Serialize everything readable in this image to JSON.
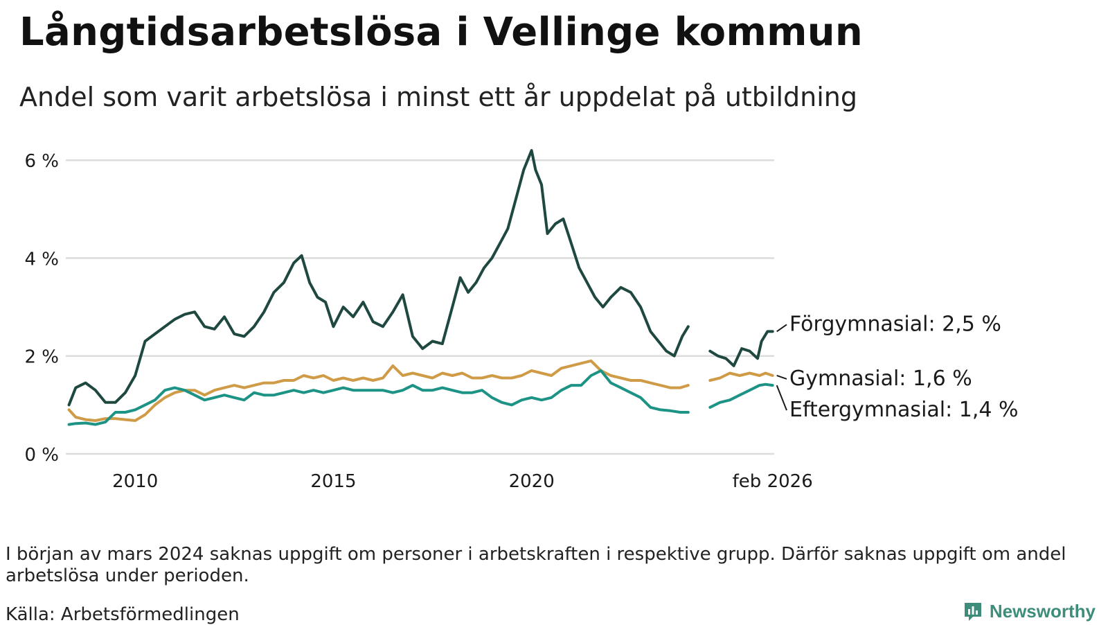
{
  "title": "Långtidsarbetslösa i Vellinge kommun",
  "subtitle": "Andel som varit arbetslösa i minst ett år uppdelat på utbildning",
  "note": "I början av mars 2024 saknas uppgift om personer i arbetskraften i respektive grupp. Därför saknas uppgift om andel arbetslösa under perioden.",
  "source": "Källa: Arbetsförmedlingen",
  "brand": "Newsworthy",
  "chart_data": {
    "type": "line",
    "x_unit": "year",
    "xlim": [
      2008.25,
      2026.12
    ],
    "ylim": [
      0,
      6.3
    ],
    "y_ticks": [
      0,
      2,
      4,
      6
    ],
    "y_tick_labels": [
      "0 %",
      "2 %",
      "4 %",
      "6 %"
    ],
    "x_ticks": [
      2010,
      2015,
      2020,
      2026.08
    ],
    "x_tick_labels": [
      "2010",
      "2015",
      "2020",
      "feb 2026"
    ],
    "gap": [
      2024.15,
      2024.45
    ],
    "grid": true,
    "series": [
      {
        "name": "Förgymnasial",
        "label": "Förgymnasial: 2,5 %",
        "color": "#1e4840",
        "points": [
          [
            2008.33,
            1.0
          ],
          [
            2008.5,
            1.35
          ],
          [
            2008.75,
            1.45
          ],
          [
            2009.0,
            1.3
          ],
          [
            2009.25,
            1.05
          ],
          [
            2009.5,
            1.05
          ],
          [
            2009.75,
            1.25
          ],
          [
            2010.0,
            1.6
          ],
          [
            2010.25,
            2.3
          ],
          [
            2010.5,
            2.45
          ],
          [
            2010.75,
            2.6
          ],
          [
            2011.0,
            2.75
          ],
          [
            2011.25,
            2.85
          ],
          [
            2011.5,
            2.9
          ],
          [
            2011.75,
            2.6
          ],
          [
            2012.0,
            2.55
          ],
          [
            2012.25,
            2.8
          ],
          [
            2012.5,
            2.45
          ],
          [
            2012.75,
            2.4
          ],
          [
            2013.0,
            2.6
          ],
          [
            2013.25,
            2.9
          ],
          [
            2013.5,
            3.3
          ],
          [
            2013.75,
            3.5
          ],
          [
            2014.0,
            3.9
          ],
          [
            2014.2,
            4.05
          ],
          [
            2014.4,
            3.5
          ],
          [
            2014.6,
            3.2
          ],
          [
            2014.8,
            3.1
          ],
          [
            2015.0,
            2.6
          ],
          [
            2015.25,
            3.0
          ],
          [
            2015.5,
            2.8
          ],
          [
            2015.75,
            3.1
          ],
          [
            2016.0,
            2.7
          ],
          [
            2016.25,
            2.6
          ],
          [
            2016.5,
            2.9
          ],
          [
            2016.75,
            3.25
          ],
          [
            2017.0,
            2.4
          ],
          [
            2017.25,
            2.15
          ],
          [
            2017.5,
            2.3
          ],
          [
            2017.75,
            2.25
          ],
          [
            2018.0,
            3.0
          ],
          [
            2018.2,
            3.6
          ],
          [
            2018.4,
            3.3
          ],
          [
            2018.6,
            3.5
          ],
          [
            2018.8,
            3.8
          ],
          [
            2019.0,
            4.0
          ],
          [
            2019.2,
            4.3
          ],
          [
            2019.4,
            4.6
          ],
          [
            2019.6,
            5.2
          ],
          [
            2019.8,
            5.8
          ],
          [
            2020.0,
            6.2
          ],
          [
            2020.1,
            5.8
          ],
          [
            2020.25,
            5.5
          ],
          [
            2020.4,
            4.5
          ],
          [
            2020.6,
            4.7
          ],
          [
            2020.8,
            4.8
          ],
          [
            2021.0,
            4.3
          ],
          [
            2021.2,
            3.8
          ],
          [
            2021.4,
            3.5
          ],
          [
            2021.6,
            3.2
          ],
          [
            2021.8,
            3.0
          ],
          [
            2022.0,
            3.2
          ],
          [
            2022.25,
            3.4
          ],
          [
            2022.5,
            3.3
          ],
          [
            2022.75,
            3.0
          ],
          [
            2023.0,
            2.5
          ],
          [
            2023.2,
            2.3
          ],
          [
            2023.4,
            2.1
          ],
          [
            2023.6,
            2.0
          ],
          [
            2023.8,
            2.4
          ],
          [
            2023.95,
            2.6
          ],
          [
            2024.5,
            2.1
          ],
          [
            2024.7,
            2.0
          ],
          [
            2024.9,
            1.95
          ],
          [
            2025.1,
            1.8
          ],
          [
            2025.3,
            2.15
          ],
          [
            2025.5,
            2.1
          ],
          [
            2025.7,
            1.95
          ],
          [
            2025.8,
            2.3
          ],
          [
            2025.95,
            2.5
          ],
          [
            2026.08,
            2.5
          ]
        ]
      },
      {
        "name": "Gymnasial",
        "label": "Gymnasial: 1,6 %",
        "color": "#cf9b47",
        "points": [
          [
            2008.33,
            0.9
          ],
          [
            2008.5,
            0.75
          ],
          [
            2008.75,
            0.7
          ],
          [
            2009.0,
            0.68
          ],
          [
            2009.25,
            0.72
          ],
          [
            2009.5,
            0.72
          ],
          [
            2009.75,
            0.7
          ],
          [
            2010.0,
            0.68
          ],
          [
            2010.25,
            0.8
          ],
          [
            2010.5,
            1.0
          ],
          [
            2010.75,
            1.15
          ],
          [
            2011.0,
            1.25
          ],
          [
            2011.25,
            1.3
          ],
          [
            2011.5,
            1.3
          ],
          [
            2011.75,
            1.2
          ],
          [
            2012.0,
            1.3
          ],
          [
            2012.25,
            1.35
          ],
          [
            2012.5,
            1.4
          ],
          [
            2012.75,
            1.35
          ],
          [
            2013.0,
            1.4
          ],
          [
            2013.25,
            1.45
          ],
          [
            2013.5,
            1.45
          ],
          [
            2013.75,
            1.5
          ],
          [
            2014.0,
            1.5
          ],
          [
            2014.25,
            1.6
          ],
          [
            2014.5,
            1.55
          ],
          [
            2014.75,
            1.6
          ],
          [
            2015.0,
            1.5
          ],
          [
            2015.25,
            1.55
          ],
          [
            2015.5,
            1.5
          ],
          [
            2015.75,
            1.55
          ],
          [
            2016.0,
            1.5
          ],
          [
            2016.25,
            1.55
          ],
          [
            2016.5,
            1.8
          ],
          [
            2016.75,
            1.6
          ],
          [
            2017.0,
            1.65
          ],
          [
            2017.25,
            1.6
          ],
          [
            2017.5,
            1.55
          ],
          [
            2017.75,
            1.65
          ],
          [
            2018.0,
            1.6
          ],
          [
            2018.25,
            1.65
          ],
          [
            2018.5,
            1.55
          ],
          [
            2018.75,
            1.55
          ],
          [
            2019.0,
            1.6
          ],
          [
            2019.25,
            1.55
          ],
          [
            2019.5,
            1.55
          ],
          [
            2019.75,
            1.6
          ],
          [
            2020.0,
            1.7
          ],
          [
            2020.25,
            1.65
          ],
          [
            2020.5,
            1.6
          ],
          [
            2020.75,
            1.75
          ],
          [
            2021.0,
            1.8
          ],
          [
            2021.25,
            1.85
          ],
          [
            2021.5,
            1.9
          ],
          [
            2021.75,
            1.7
          ],
          [
            2022.0,
            1.6
          ],
          [
            2022.25,
            1.55
          ],
          [
            2022.5,
            1.5
          ],
          [
            2022.75,
            1.5
          ],
          [
            2023.0,
            1.45
          ],
          [
            2023.25,
            1.4
          ],
          [
            2023.5,
            1.35
          ],
          [
            2023.75,
            1.35
          ],
          [
            2023.95,
            1.4
          ],
          [
            2024.5,
            1.5
          ],
          [
            2024.75,
            1.55
          ],
          [
            2025.0,
            1.65
          ],
          [
            2025.25,
            1.6
          ],
          [
            2025.5,
            1.65
          ],
          [
            2025.75,
            1.6
          ],
          [
            2025.9,
            1.65
          ],
          [
            2026.08,
            1.6
          ]
        ]
      },
      {
        "name": "Eftergymnasial",
        "label": "Eftergymnasial: 1,4 %",
        "color": "#1d9385",
        "points": [
          [
            2008.33,
            0.6
          ],
          [
            2008.5,
            0.62
          ],
          [
            2008.75,
            0.63
          ],
          [
            2009.0,
            0.6
          ],
          [
            2009.25,
            0.65
          ],
          [
            2009.5,
            0.85
          ],
          [
            2009.75,
            0.85
          ],
          [
            2010.0,
            0.9
          ],
          [
            2010.25,
            1.0
          ],
          [
            2010.5,
            1.1
          ],
          [
            2010.75,
            1.3
          ],
          [
            2011.0,
            1.35
          ],
          [
            2011.25,
            1.3
          ],
          [
            2011.5,
            1.2
          ],
          [
            2011.75,
            1.1
          ],
          [
            2012.0,
            1.15
          ],
          [
            2012.25,
            1.2
          ],
          [
            2012.5,
            1.15
          ],
          [
            2012.75,
            1.1
          ],
          [
            2013.0,
            1.25
          ],
          [
            2013.25,
            1.2
          ],
          [
            2013.5,
            1.2
          ],
          [
            2013.75,
            1.25
          ],
          [
            2014.0,
            1.3
          ],
          [
            2014.25,
            1.25
          ],
          [
            2014.5,
            1.3
          ],
          [
            2014.75,
            1.25
          ],
          [
            2015.0,
            1.3
          ],
          [
            2015.25,
            1.35
          ],
          [
            2015.5,
            1.3
          ],
          [
            2015.75,
            1.3
          ],
          [
            2016.0,
            1.3
          ],
          [
            2016.25,
            1.3
          ],
          [
            2016.5,
            1.25
          ],
          [
            2016.75,
            1.3
          ],
          [
            2017.0,
            1.4
          ],
          [
            2017.25,
            1.3
          ],
          [
            2017.5,
            1.3
          ],
          [
            2017.75,
            1.35
          ],
          [
            2018.0,
            1.3
          ],
          [
            2018.25,
            1.25
          ],
          [
            2018.5,
            1.25
          ],
          [
            2018.75,
            1.3
          ],
          [
            2019.0,
            1.15
          ],
          [
            2019.25,
            1.05
          ],
          [
            2019.5,
            1.0
          ],
          [
            2019.75,
            1.1
          ],
          [
            2020.0,
            1.15
          ],
          [
            2020.25,
            1.1
          ],
          [
            2020.5,
            1.15
          ],
          [
            2020.75,
            1.3
          ],
          [
            2021.0,
            1.4
          ],
          [
            2021.25,
            1.4
          ],
          [
            2021.5,
            1.6
          ],
          [
            2021.75,
            1.7
          ],
          [
            2022.0,
            1.45
          ],
          [
            2022.25,
            1.35
          ],
          [
            2022.5,
            1.25
          ],
          [
            2022.75,
            1.15
          ],
          [
            2023.0,
            0.95
          ],
          [
            2023.25,
            0.9
          ],
          [
            2023.5,
            0.88
          ],
          [
            2023.75,
            0.85
          ],
          [
            2023.95,
            0.85
          ],
          [
            2024.5,
            0.95
          ],
          [
            2024.75,
            1.05
          ],
          [
            2025.0,
            1.1
          ],
          [
            2025.25,
            1.2
          ],
          [
            2025.5,
            1.3
          ],
          [
            2025.75,
            1.4
          ],
          [
            2025.9,
            1.42
          ],
          [
            2026.08,
            1.4
          ]
        ]
      }
    ]
  }
}
